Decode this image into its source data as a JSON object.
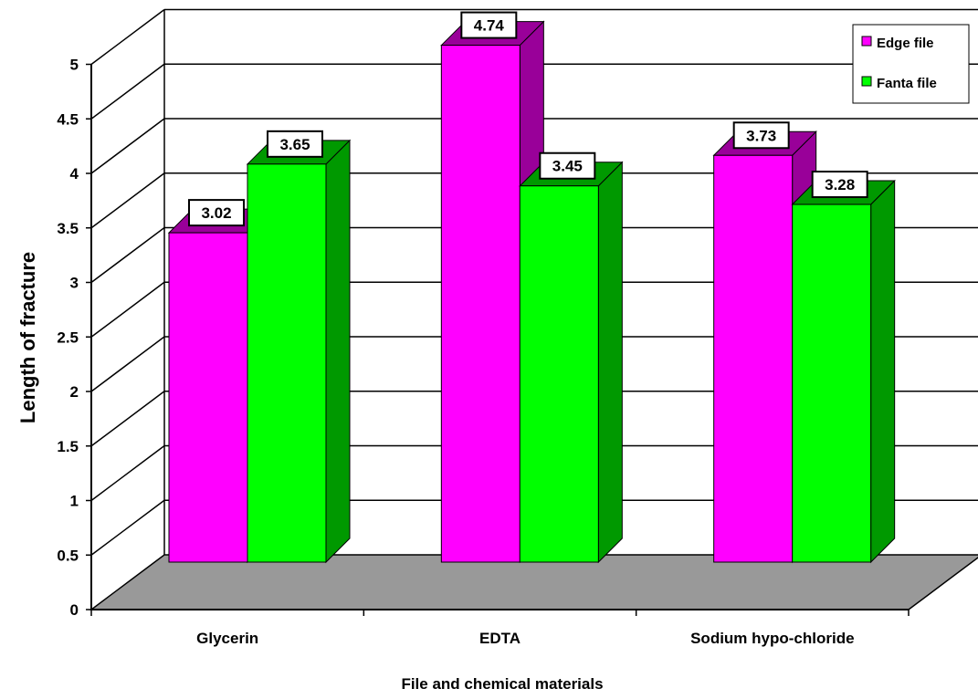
{
  "chart_data": {
    "type": "bar",
    "style": "3d-clustered-column",
    "categories": [
      "Glycerin",
      "EDTA",
      "Sodium hypo-chloride"
    ],
    "series": [
      {
        "name": "Edge file",
        "values": [
          3.02,
          4.74,
          3.73
        ],
        "color": "#ff00ff",
        "side_color": "#990099"
      },
      {
        "name": "Fanta file",
        "values": [
          3.65,
          3.45,
          3.28
        ],
        "color": "#00ff00",
        "side_color": "#009900"
      }
    ],
    "data_labels": [
      [
        "3.02",
        "4.74",
        "3.73"
      ],
      [
        "3.65",
        "3.45",
        "3.28"
      ]
    ],
    "title": "",
    "xlabel": "File and chemical materials",
    "ylabel": "Length of fracture",
    "ylim": [
      0,
      5
    ],
    "yticks": [
      "0",
      "0.5",
      "1",
      "1.5",
      "2",
      "2.5",
      "3",
      "3.5",
      "4",
      "4.5",
      "5"
    ],
    "grid": true,
    "legend_position": "top-right",
    "floor_color": "#999999"
  }
}
